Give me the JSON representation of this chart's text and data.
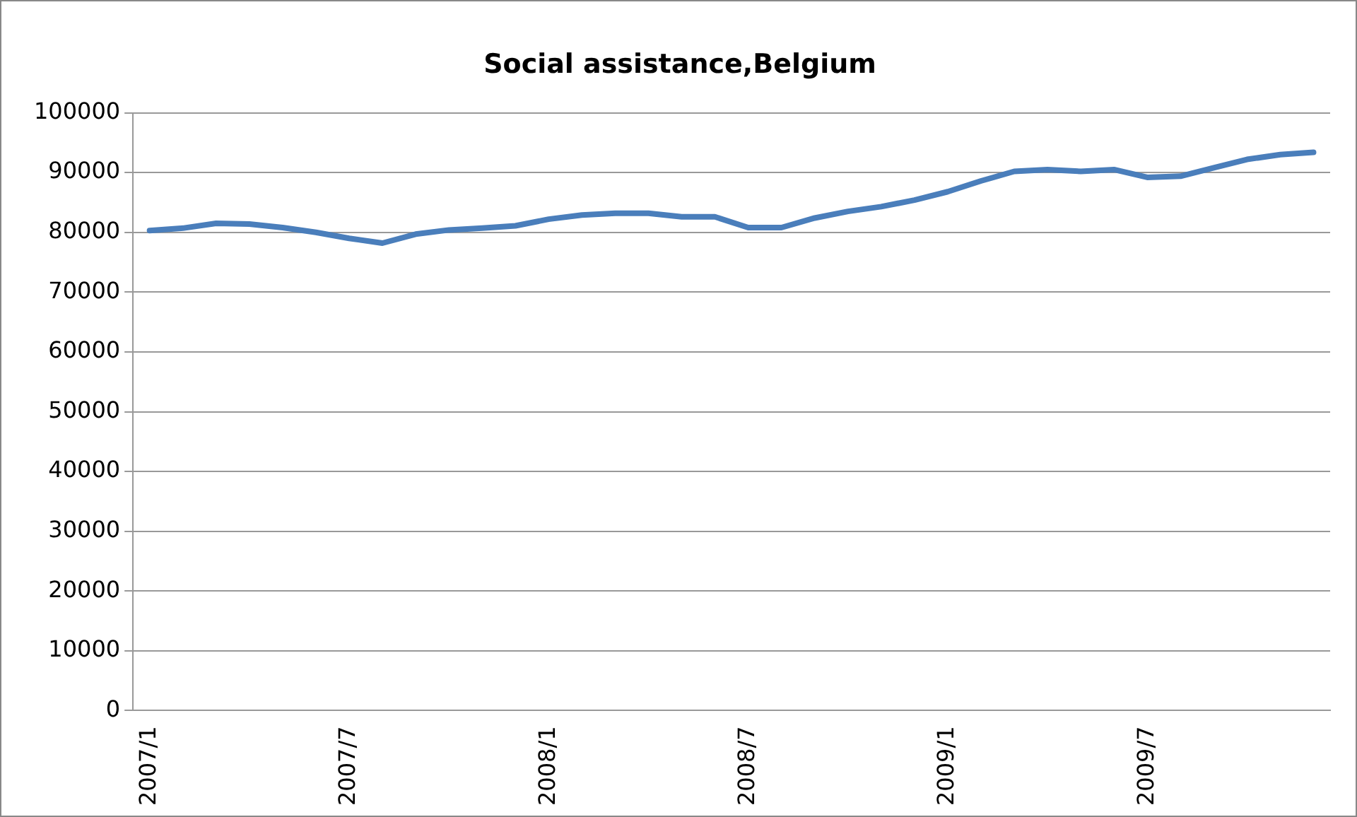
{
  "chart_data": {
    "type": "line",
    "title": "Social assistance,Belgium",
    "categories": [
      "2007/1",
      null,
      null,
      null,
      null,
      null,
      "2007/7",
      null,
      null,
      null,
      null,
      null,
      "2008/1",
      null,
      null,
      null,
      null,
      null,
      "2008/7",
      null,
      null,
      null,
      null,
      null,
      "2009/1",
      null,
      null,
      null,
      null,
      null,
      "2009/7",
      null,
      null,
      null,
      null,
      null
    ],
    "series": [
      {
        "color": "#4a7ebb",
        "values": [
          80300,
          80700,
          81500,
          81400,
          80800,
          80000,
          79000,
          78200,
          79700,
          80400,
          80700,
          81100,
          82200,
          82900,
          83200,
          83200,
          82600,
          82600,
          80800,
          80800,
          82400,
          83500,
          84300,
          85400,
          86800,
          88600,
          90200,
          90500,
          90200,
          90500,
          89200,
          89400,
          90800,
          92200,
          93000,
          93400
        ]
      }
    ],
    "ylim": [
      0,
      100000
    ],
    "yticks": [
      0,
      10000,
      20000,
      30000,
      40000,
      50000,
      60000,
      70000,
      80000,
      90000,
      100000
    ],
    "grid": "y",
    "legend": false,
    "marker": "none",
    "line_style": "solid"
  }
}
